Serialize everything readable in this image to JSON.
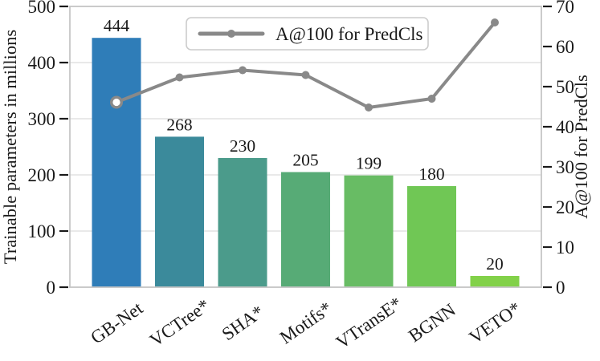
{
  "figure": {
    "kind": "bar chart with secondary-axis line overlay",
    "background": "#ffffff"
  },
  "chart_data": {
    "type": "bar",
    "categories": [
      "GB-Net",
      "VCTree*",
      "SHA*",
      "Motifs*",
      "VTransE*",
      "BGNN",
      "VETO*"
    ],
    "series": [
      {
        "name": "Trainable parameters in millions",
        "kind": "bar",
        "axis": "left",
        "values": [
          444,
          268,
          230,
          205,
          199,
          180,
          20
        ],
        "value_labels": [
          "444",
          "268",
          "230",
          "205",
          "199",
          "180",
          "20"
        ],
        "bar_colors": [
          "#2f7db8",
          "#3b8a9b",
          "#4b9b8b",
          "#57ab76",
          "#68bc64",
          "#70c755",
          "#82d149"
        ]
      },
      {
        "name": "A@100 for PredCls",
        "kind": "line",
        "axis": "right",
        "values": [
          46.1,
          52.3,
          54.1,
          52.9,
          44.8,
          47.0,
          66.0
        ],
        "color": "#898989",
        "first_marker_style": "open-circle",
        "marker_style": "filled-circle"
      }
    ],
    "left_axis": {
      "label": "Trainable parameters in millions",
      "ticks": [
        0,
        100,
        200,
        300,
        400,
        500
      ],
      "lim": [
        0,
        500
      ]
    },
    "right_axis": {
      "label": "A@100 for PredCls",
      "ticks": [
        0,
        10,
        20,
        30,
        40,
        50,
        60,
        70
      ],
      "lim": [
        0,
        70
      ]
    },
    "x_axis": {
      "tick_rotation_deg": -35
    },
    "legend": {
      "label": "A@100 for PredCls",
      "position": "upper center",
      "border_color": "#cccccc",
      "background": "#ffffff"
    },
    "grid": {
      "visible": true,
      "color": "#dcdcdc",
      "orientation": "horizontal"
    },
    "colors": {
      "spine": "#c6c6c6",
      "tick_mark": "#1a1a1a",
      "text": "#1a1a1a",
      "line_series": "#898989"
    },
    "title": "",
    "xlabel": "",
    "ylabel": "Trainable parameters in millions",
    "ylabel_right": "A@100 for PredCls"
  }
}
